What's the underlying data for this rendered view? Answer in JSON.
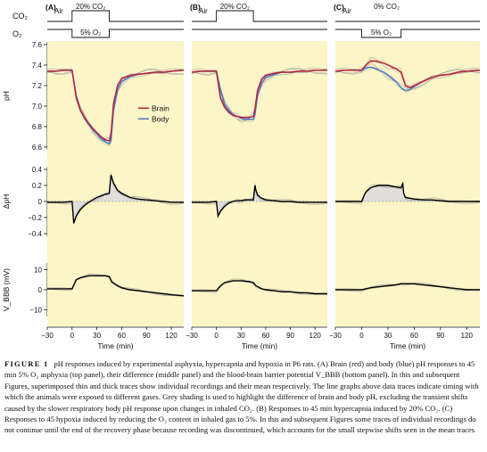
{
  "figure_caption": {
    "label": "FIGURE 1",
    "text": "pH responses induced by experimental asphyxia, hypercapnia and hypoxia in P6 rats. (A) Brain (red) and body (blue) pH responses to 45 min 5% O₂ asphyxia (top panel), their difference (middle panel) and the blood-brain barrier potential V_BBB (bottom panel). In this and subsequent Figures, superimposed thin and thick traces show individual recordings and their mean respectively. The line graphs above data traces indicate timing with which the animals were exposed to different gases. Grey shading is used to highlight the difference of brain and body pH, excluding the transient shifts caused by the slower respiratory body pH response upon changes in inhaled CO₂. (B) Responses to 45 min hypercapnia induced by 20% CO₂. (C) Responses to 45 hypoxia induced by reducing the O₂ content in inhaled gas to 5%. In this and subsequent Figures some traces of individual recordings do not continue until the end of the recovery phase because recording was discontinued, which accounts for the small stepwise shifts seen in the mean traces"
  },
  "colors": {
    "panel_bg": "#fbf5c8",
    "brain": "#b8213a",
    "body": "#4a78c4",
    "mean_trace": "#000000",
    "individual_trace": "#9a9a9a",
    "shading": "#dcdcdc"
  },
  "chart_data": {
    "type": "line",
    "xlabel": "Time (min)",
    "x_ticks": [
      "−30",
      "0",
      "30",
      "60",
      "90",
      "120"
    ],
    "xlim": [
      -30,
      135
    ],
    "gas_rows": {
      "co2_label": "CO₂",
      "o2_label": "O₂",
      "air_label": "Air"
    },
    "rows": [
      {
        "key": "ph",
        "ylabel": "pH",
        "ylim": [
          6.6,
          7.6
        ],
        "ticks": [
          "6.6",
          "6.8",
          "7.0",
          "7.2",
          "7.4",
          "7.6"
        ]
      },
      {
        "key": "dph",
        "ylabel": "ΔpH",
        "ylim": [
          -0.4,
          0.4
        ],
        "ticks": [
          "−0.4",
          "−0.2",
          "0",
          "0.2",
          "0.4"
        ]
      },
      {
        "key": "vbbb",
        "ylabel": "V_BBB (mV)",
        "ylim": [
          -12,
          12
        ],
        "ticks": [
          "−10",
          "0",
          "10"
        ]
      }
    ],
    "legend": {
      "brain": "Brain",
      "body": "Body",
      "position": "right of pH trace in panel A"
    },
    "panels": [
      {
        "letter": "(A)",
        "co2_label": "20% CO₂",
        "co2_step": true,
        "o2_label": "5% O₂",
        "ph_brain": {
          "x": [
            -30,
            -20,
            -10,
            0,
            5,
            10,
            15,
            20,
            25,
            30,
            35,
            40,
            45,
            47,
            50,
            55,
            60,
            70,
            80,
            90,
            100,
            110,
            120,
            135
          ],
          "y": [
            7.34,
            7.34,
            7.35,
            7.35,
            7.08,
            6.96,
            6.89,
            6.83,
            6.78,
            6.74,
            6.7,
            6.67,
            6.66,
            6.72,
            7.02,
            7.2,
            7.27,
            7.3,
            7.31,
            7.32,
            7.33,
            7.33,
            7.34,
            7.35
          ]
        },
        "ph_body": {
          "x": [
            -30,
            -20,
            -10,
            0,
            5,
            10,
            15,
            20,
            25,
            30,
            35,
            40,
            45,
            47,
            50,
            55,
            60,
            70,
            80,
            90,
            100,
            110,
            120,
            135
          ],
          "y": [
            7.34,
            7.34,
            7.35,
            7.35,
            7.1,
            6.96,
            6.88,
            6.82,
            6.77,
            6.73,
            6.68,
            6.65,
            6.63,
            6.66,
            6.95,
            7.16,
            7.24,
            7.29,
            7.31,
            7.32,
            7.33,
            7.33,
            7.34,
            7.35
          ]
        },
        "dph": {
          "x": [
            -30,
            -10,
            0,
            2,
            5,
            10,
            15,
            20,
            25,
            30,
            35,
            40,
            45,
            47,
            48,
            50,
            55,
            60,
            70,
            80,
            90,
            100,
            110,
            120,
            135
          ],
          "y": [
            -0.01,
            -0.01,
            0.0,
            -0.27,
            -0.18,
            -0.1,
            -0.05,
            -0.01,
            0.02,
            0.05,
            0.07,
            0.09,
            0.1,
            0.33,
            0.3,
            0.23,
            0.14,
            0.1,
            0.05,
            0.03,
            0.02,
            0.01,
            0.0,
            -0.01,
            -0.01
          ]
        },
        "vbbb": {
          "x": [
            -30,
            -15,
            0,
            5,
            10,
            20,
            30,
            40,
            45,
            48,
            55,
            60,
            70,
            80,
            90,
            100,
            110,
            120,
            135
          ],
          "y": [
            0.5,
            0.5,
            0.5,
            5.0,
            6.0,
            7.0,
            7.0,
            7.0,
            6.5,
            4.0,
            2.0,
            1.0,
            0.0,
            -0.5,
            -1.0,
            -1.5,
            -2.0,
            -2.5,
            -3.0
          ]
        }
      },
      {
        "letter": "(B)",
        "co2_label": "20% CO₂",
        "co2_step": true,
        "o2_label": "",
        "ph_brain": {
          "x": [
            -30,
            -20,
            -10,
            0,
            5,
            10,
            15,
            20,
            25,
            30,
            35,
            40,
            45,
            47,
            50,
            55,
            60,
            70,
            80,
            90,
            100,
            110,
            120,
            135
          ],
          "y": [
            7.33,
            7.34,
            7.34,
            7.34,
            7.08,
            6.99,
            6.94,
            6.91,
            6.9,
            6.89,
            6.89,
            6.89,
            6.9,
            6.97,
            7.15,
            7.26,
            7.3,
            7.32,
            7.33,
            7.33,
            7.34,
            7.34,
            7.35,
            7.35
          ]
        },
        "ph_body": {
          "x": [
            -30,
            -20,
            -10,
            0,
            5,
            10,
            15,
            20,
            25,
            30,
            35,
            40,
            45,
            47,
            50,
            55,
            60,
            70,
            80,
            90,
            100,
            110,
            120,
            135
          ],
          "y": [
            7.33,
            7.34,
            7.34,
            7.34,
            7.16,
            7.02,
            6.96,
            6.92,
            6.9,
            6.88,
            6.87,
            6.87,
            6.87,
            6.92,
            7.1,
            7.22,
            7.28,
            7.31,
            7.33,
            7.33,
            7.34,
            7.34,
            7.35,
            7.35
          ]
        },
        "dph": {
          "x": [
            -30,
            -10,
            0,
            2,
            5,
            10,
            15,
            20,
            25,
            30,
            35,
            40,
            45,
            47,
            48,
            50,
            55,
            60,
            70,
            80,
            90,
            100,
            110,
            120,
            135
          ],
          "y": [
            -0.01,
            -0.01,
            0.0,
            -0.18,
            -0.12,
            -0.06,
            -0.02,
            0.0,
            0.01,
            0.01,
            0.02,
            0.02,
            0.02,
            0.2,
            0.14,
            0.08,
            0.04,
            0.02,
            0.01,
            0.0,
            0.0,
            -0.01,
            -0.01,
            -0.01,
            -0.01
          ]
        },
        "vbbb": {
          "x": [
            -30,
            -15,
            0,
            5,
            10,
            20,
            30,
            40,
            45,
            48,
            55,
            60,
            70,
            80,
            90,
            100,
            110,
            120,
            135
          ],
          "y": [
            -0.5,
            -0.5,
            -0.5,
            2.0,
            3.5,
            4.5,
            4.5,
            4.0,
            3.5,
            2.0,
            0.5,
            0.0,
            -0.5,
            -1.0,
            -1.0,
            -1.5,
            -1.5,
            -2.0,
            -2.0
          ]
        }
      },
      {
        "letter": "(C)",
        "co2_label": "0% CO₂",
        "co2_step": false,
        "o2_label": "5% O₂",
        "ph_brain": {
          "x": [
            -30,
            -20,
            -10,
            0,
            5,
            10,
            15,
            20,
            25,
            30,
            35,
            40,
            45,
            50,
            55,
            60,
            70,
            80,
            90,
            100,
            110,
            120,
            135
          ],
          "y": [
            7.34,
            7.35,
            7.35,
            7.35,
            7.4,
            7.44,
            7.44,
            7.43,
            7.42,
            7.4,
            7.38,
            7.36,
            7.33,
            7.2,
            7.18,
            7.2,
            7.24,
            7.28,
            7.3,
            7.31,
            7.33,
            7.34,
            7.35
          ]
        },
        "ph_body": {
          "x": [
            -30,
            -20,
            -10,
            0,
            5,
            10,
            15,
            20,
            25,
            30,
            35,
            40,
            45,
            50,
            55,
            60,
            70,
            80,
            90,
            100,
            110,
            120,
            135
          ],
          "y": [
            7.34,
            7.35,
            7.35,
            7.35,
            7.37,
            7.38,
            7.37,
            7.35,
            7.33,
            7.3,
            7.27,
            7.23,
            7.18,
            7.15,
            7.16,
            7.19,
            7.24,
            7.28,
            7.3,
            7.31,
            7.33,
            7.34,
            7.35
          ]
        },
        "dph": {
          "x": [
            -30,
            -10,
            0,
            3,
            5,
            10,
            15,
            20,
            25,
            30,
            35,
            40,
            45,
            47,
            48,
            50,
            55,
            60,
            70,
            80,
            90,
            100,
            110,
            120,
            135
          ],
          "y": [
            0.0,
            0.0,
            0.0,
            0.08,
            0.12,
            0.17,
            0.19,
            0.2,
            0.2,
            0.2,
            0.19,
            0.18,
            0.17,
            0.22,
            0.1,
            0.05,
            0.04,
            0.03,
            0.02,
            0.02,
            0.01,
            0.0,
            0.0,
            0.0,
            0.0
          ]
        },
        "vbbb": {
          "x": [
            -30,
            -15,
            0,
            5,
            10,
            20,
            30,
            40,
            45,
            48,
            55,
            60,
            70,
            80,
            90,
            100,
            110,
            120,
            135
          ],
          "y": [
            0.0,
            0.0,
            0.0,
            0.5,
            1.0,
            1.5,
            2.0,
            2.5,
            3.0,
            3.0,
            3.0,
            3.0,
            2.5,
            2.0,
            1.5,
            1.0,
            0.5,
            0.0,
            0.0
          ]
        }
      }
    ]
  }
}
